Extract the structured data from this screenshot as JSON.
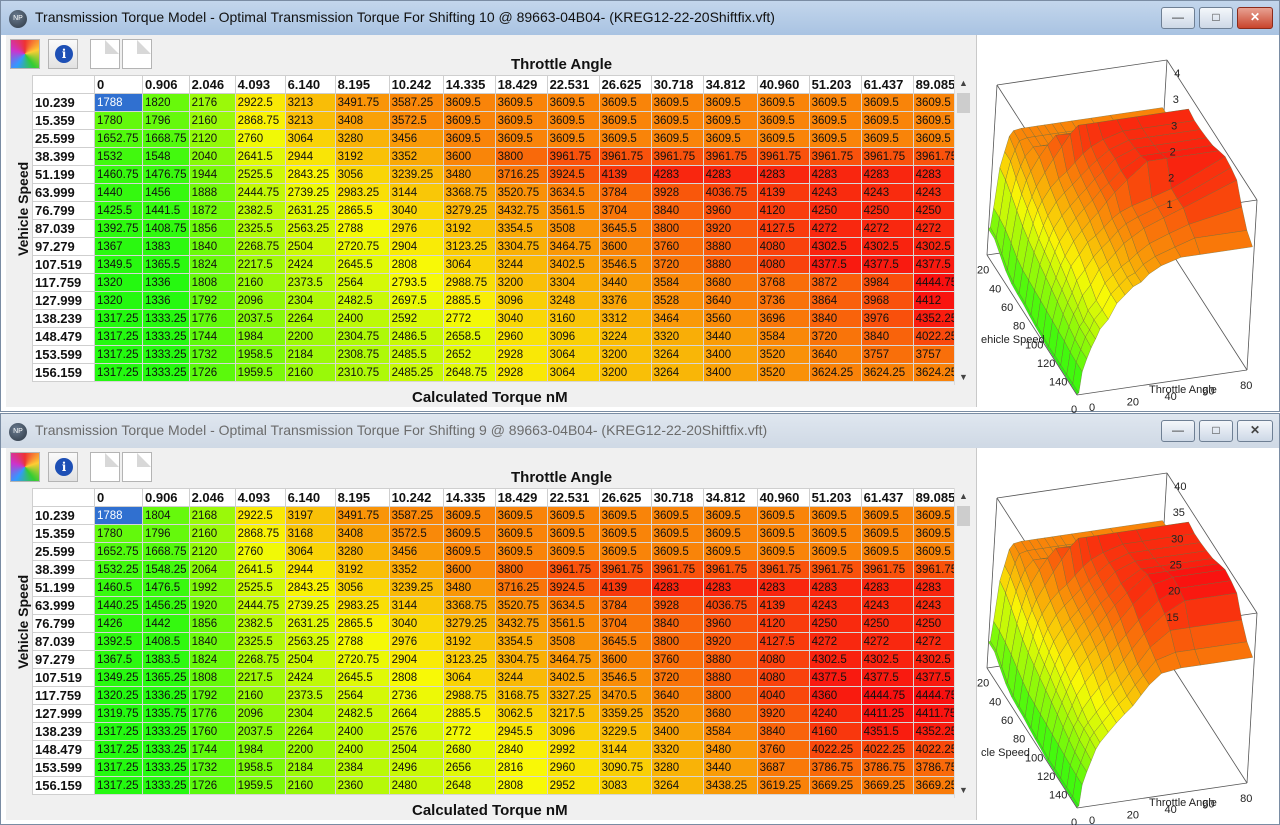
{
  "windows": [
    {
      "title": "Transmission Torque Model - Optimal Transmission Torque For Shifting 10 @ 89663-04B04- (KREG12-22-20Shiftfix.vft)",
      "active": true,
      "x_axis_label": "Throttle Angle",
      "y_axis_label": "Vehicle Speed",
      "value_label": "Calculated Torque nM",
      "columns": [
        "0",
        "0.906",
        "2.046",
        "4.093",
        "6.140",
        "8.195",
        "10.242",
        "14.335",
        "18.429",
        "22.531",
        "26.625",
        "30.718",
        "34.812",
        "40.960",
        "51.203",
        "61.437",
        "89.085"
      ],
      "rows": [
        {
          "speed": "10.239",
          "values": [
            "1788",
            "1820",
            "2176",
            "2922.5",
            "3213",
            "3491.75",
            "3587.25",
            "3609.5",
            "3609.5",
            "3609.5",
            "3609.5",
            "3609.5",
            "3609.5",
            "3609.5",
            "3609.5",
            "3609.5",
            "3609.5"
          ]
        },
        {
          "speed": "15.359",
          "values": [
            "1780",
            "1796",
            "2160",
            "2868.75",
            "3213",
            "3408",
            "3572.5",
            "3609.5",
            "3609.5",
            "3609.5",
            "3609.5",
            "3609.5",
            "3609.5",
            "3609.5",
            "3609.5",
            "3609.5",
            "3609.5"
          ]
        },
        {
          "speed": "25.599",
          "values": [
            "1652.75",
            "1668.75",
            "2120",
            "2760",
            "3064",
            "3280",
            "3456",
            "3609.5",
            "3609.5",
            "3609.5",
            "3609.5",
            "3609.5",
            "3609.5",
            "3609.5",
            "3609.5",
            "3609.5",
            "3609.5"
          ]
        },
        {
          "speed": "38.399",
          "values": [
            "1532",
            "1548",
            "2040",
            "2641.5",
            "2944",
            "3192",
            "3352",
            "3600",
            "3800",
            "3961.75",
            "3961.75",
            "3961.75",
            "3961.75",
            "3961.75",
            "3961.75",
            "3961.75",
            "3961.75"
          ]
        },
        {
          "speed": "51.199",
          "values": [
            "1460.75",
            "1476.75",
            "1944",
            "2525.5",
            "2843.25",
            "3056",
            "3239.25",
            "3480",
            "3716.25",
            "3924.5",
            "4139",
            "4283",
            "4283",
            "4283",
            "4283",
            "4283",
            "4283"
          ]
        },
        {
          "speed": "63.999",
          "values": [
            "1440",
            "1456",
            "1888",
            "2444.75",
            "2739.25",
            "2983.25",
            "3144",
            "3368.75",
            "3520.75",
            "3634.5",
            "3784",
            "3928",
            "4036.75",
            "4139",
            "4243",
            "4243",
            "4243"
          ]
        },
        {
          "speed": "76.799",
          "values": [
            "1425.5",
            "1441.5",
            "1872",
            "2382.5",
            "2631.25",
            "2865.5",
            "3040",
            "3279.25",
            "3432.75",
            "3561.5",
            "3704",
            "3840",
            "3960",
            "4120",
            "4250",
            "4250",
            "4250"
          ]
        },
        {
          "speed": "87.039",
          "values": [
            "1392.75",
            "1408.75",
            "1856",
            "2325.5",
            "2563.25",
            "2788",
            "2976",
            "3192",
            "3354.5",
            "3508",
            "3645.5",
            "3800",
            "3920",
            "4127.5",
            "4272",
            "4272",
            "4272"
          ]
        },
        {
          "speed": "97.279",
          "values": [
            "1367",
            "1383",
            "1840",
            "2268.75",
            "2504",
            "2720.75",
            "2904",
            "3123.25",
            "3304.75",
            "3464.75",
            "3600",
            "3760",
            "3880",
            "4080",
            "4302.5",
            "4302.5",
            "4302.5"
          ]
        },
        {
          "speed": "107.519",
          "values": [
            "1349.5",
            "1365.5",
            "1824",
            "2217.5",
            "2424",
            "2645.5",
            "2808",
            "3064",
            "3244",
            "3402.5",
            "3546.5",
            "3720",
            "3880",
            "4080",
            "4377.5",
            "4377.5",
            "4377.5"
          ]
        },
        {
          "speed": "117.759",
          "values": [
            "1320",
            "1336",
            "1808",
            "2160",
            "2373.5",
            "2564",
            "2793.5",
            "2988.75",
            "3200",
            "3304",
            "3440",
            "3584",
            "3680",
            "3768",
            "3872",
            "3984",
            "4444.75"
          ]
        },
        {
          "speed": "127.999",
          "values": [
            "1320",
            "1336",
            "1792",
            "2096",
            "2304",
            "2482.5",
            "2697.5",
            "2885.5",
            "3096",
            "3248",
            "3376",
            "3528",
            "3640",
            "3736",
            "3864",
            "3968",
            "4412"
          ]
        },
        {
          "speed": "138.239",
          "values": [
            "1317.25",
            "1333.25",
            "1776",
            "2037.5",
            "2264",
            "2400",
            "2592",
            "2772",
            "3040",
            "3160",
            "3312",
            "3464",
            "3560",
            "3696",
            "3840",
            "3976",
            "4352.25"
          ]
        },
        {
          "speed": "148.479",
          "values": [
            "1317.25",
            "1333.25",
            "1744",
            "1984",
            "2200",
            "2304.75",
            "2486.5",
            "2658.5",
            "2960",
            "3096",
            "3224",
            "3320",
            "3440",
            "3584",
            "3720",
            "3840",
            "4022.25"
          ]
        },
        {
          "speed": "153.599",
          "values": [
            "1317.25",
            "1333.25",
            "1732",
            "1958.5",
            "2184",
            "2308.75",
            "2485.5",
            "2652",
            "2928",
            "3064",
            "3200",
            "3264",
            "3400",
            "3520",
            "3640",
            "3757",
            "3757"
          ]
        },
        {
          "speed": "156.159",
          "values": [
            "1317.25",
            "1333.25",
            "1726",
            "1959.5",
            "2160",
            "2310.75",
            "2485.25",
            "2648.75",
            "2928",
            "3064",
            "3200",
            "3264",
            "3400",
            "3520",
            "3624.25",
            "3624.25",
            "3624.25"
          ]
        }
      ],
      "plot": {
        "z_ticks": [
          "4",
          "3",
          "3",
          "2",
          "2",
          "1"
        ],
        "y_ticks": [
          "20",
          "40",
          "60",
          "80",
          "100",
          "120",
          "140",
          "0"
        ],
        "y_label": "ehicle Speed",
        "x_ticks": [
          "0",
          "20",
          "40",
          "60",
          "80"
        ],
        "x_label": "Throttle Angle"
      }
    },
    {
      "title": "Transmission Torque Model - Optimal Transmission Torque For Shifting 9 @ 89663-04B04- (KREG12-22-20Shiftfix.vft)",
      "active": false,
      "x_axis_label": "Throttle Angle",
      "y_axis_label": "Vehicle Speed",
      "value_label": "Calculated Torque nM",
      "columns": [
        "0",
        "0.906",
        "2.046",
        "4.093",
        "6.140",
        "8.195",
        "10.242",
        "14.335",
        "18.429",
        "22.531",
        "26.625",
        "30.718",
        "34.812",
        "40.960",
        "51.203",
        "61.437",
        "89.085"
      ],
      "rows": [
        {
          "speed": "10.239",
          "values": [
            "1788",
            "1804",
            "2168",
            "2922.5",
            "3197",
            "3491.75",
            "3587.25",
            "3609.5",
            "3609.5",
            "3609.5",
            "3609.5",
            "3609.5",
            "3609.5",
            "3609.5",
            "3609.5",
            "3609.5",
            "3609.5"
          ]
        },
        {
          "speed": "15.359",
          "values": [
            "1780",
            "1796",
            "2160",
            "2868.75",
            "3168",
            "3408",
            "3572.5",
            "3609.5",
            "3609.5",
            "3609.5",
            "3609.5",
            "3609.5",
            "3609.5",
            "3609.5",
            "3609.5",
            "3609.5",
            "3609.5"
          ]
        },
        {
          "speed": "25.599",
          "values": [
            "1652.75",
            "1668.75",
            "2120",
            "2760",
            "3064",
            "3280",
            "3456",
            "3609.5",
            "3609.5",
            "3609.5",
            "3609.5",
            "3609.5",
            "3609.5",
            "3609.5",
            "3609.5",
            "3609.5",
            "3609.5"
          ]
        },
        {
          "speed": "38.399",
          "values": [
            "1532.25",
            "1548.25",
            "2064",
            "2641.5",
            "2944",
            "3192",
            "3352",
            "3600",
            "3800",
            "3961.75",
            "3961.75",
            "3961.75",
            "3961.75",
            "3961.75",
            "3961.75",
            "3961.75",
            "3961.75"
          ]
        },
        {
          "speed": "51.199",
          "values": [
            "1460.5",
            "1476.5",
            "1992",
            "2525.5",
            "2843.25",
            "3056",
            "3239.25",
            "3480",
            "3716.25",
            "3924.5",
            "4139",
            "4283",
            "4283",
            "4283",
            "4283",
            "4283",
            "4283"
          ]
        },
        {
          "speed": "63.999",
          "values": [
            "1440.25",
            "1456.25",
            "1920",
            "2444.75",
            "2739.25",
            "2983.25",
            "3144",
            "3368.75",
            "3520.75",
            "3634.5",
            "3784",
            "3928",
            "4036.75",
            "4139",
            "4243",
            "4243",
            "4243"
          ]
        },
        {
          "speed": "76.799",
          "values": [
            "1426",
            "1442",
            "1856",
            "2382.5",
            "2631.25",
            "2865.5",
            "3040",
            "3279.25",
            "3432.75",
            "3561.5",
            "3704",
            "3840",
            "3960",
            "4120",
            "4250",
            "4250",
            "4250"
          ]
        },
        {
          "speed": "87.039",
          "values": [
            "1392.5",
            "1408.5",
            "1840",
            "2325.5",
            "2563.25",
            "2788",
            "2976",
            "3192",
            "3354.5",
            "3508",
            "3645.5",
            "3800",
            "3920",
            "4127.5",
            "4272",
            "4272",
            "4272"
          ]
        },
        {
          "speed": "97.279",
          "values": [
            "1367.5",
            "1383.5",
            "1824",
            "2268.75",
            "2504",
            "2720.75",
            "2904",
            "3123.25",
            "3304.75",
            "3464.75",
            "3600",
            "3760",
            "3880",
            "4080",
            "4302.5",
            "4302.5",
            "4302.5"
          ]
        },
        {
          "speed": "107.519",
          "values": [
            "1349.25",
            "1365.25",
            "1808",
            "2217.5",
            "2424",
            "2645.5",
            "2808",
            "3064",
            "3244",
            "3402.5",
            "3546.5",
            "3720",
            "3880",
            "4080",
            "4377.5",
            "4377.5",
            "4377.5"
          ]
        },
        {
          "speed": "117.759",
          "values": [
            "1320.25",
            "1336.25",
            "1792",
            "2160",
            "2373.5",
            "2564",
            "2736",
            "2988.75",
            "3168.75",
            "3327.25",
            "3470.5",
            "3640",
            "3800",
            "4040",
            "4360",
            "4444.75",
            "4444.75"
          ]
        },
        {
          "speed": "127.999",
          "values": [
            "1319.75",
            "1335.75",
            "1776",
            "2096",
            "2304",
            "2482.5",
            "2664",
            "2885.5",
            "3062.5",
            "3217.5",
            "3359.25",
            "3520",
            "3680",
            "3920",
            "4240",
            "4411.25",
            "4411.75"
          ]
        },
        {
          "speed": "138.239",
          "values": [
            "1317.25",
            "1333.25",
            "1760",
            "2037.5",
            "2264",
            "2400",
            "2576",
            "2772",
            "2945.5",
            "3096",
            "3229.5",
            "3400",
            "3584",
            "3840",
            "4160",
            "4351.5",
            "4352.25"
          ]
        },
        {
          "speed": "148.479",
          "values": [
            "1317.25",
            "1333.25",
            "1744",
            "1984",
            "2200",
            "2400",
            "2504",
            "2680",
            "2840",
            "2992",
            "3144",
            "3320",
            "3480",
            "3760",
            "4022.25",
            "4022.25",
            "4022.25"
          ]
        },
        {
          "speed": "153.599",
          "values": [
            "1317.25",
            "1333.25",
            "1732",
            "1958.5",
            "2184",
            "2384",
            "2496",
            "2656",
            "2816",
            "2960",
            "3090.75",
            "3280",
            "3440",
            "3687",
            "3786.75",
            "3786.75",
            "3786.75"
          ]
        },
        {
          "speed": "156.159",
          "values": [
            "1317.25",
            "1333.25",
            "1726",
            "1959.5",
            "2160",
            "2360",
            "2480",
            "2648",
            "2808",
            "2952",
            "3083",
            "3264",
            "3438.25",
            "3619.25",
            "3669.25",
            "3669.25",
            "3669.25"
          ]
        }
      ],
      "plot": {
        "z_ticks": [
          "40",
          "35",
          "30",
          "25",
          "20",
          "15"
        ],
        "y_ticks": [
          "20",
          "40",
          "60",
          "80",
          "100",
          "120",
          "140",
          "0"
        ],
        "y_label": "cle Speed",
        "x_ticks": [
          "0",
          "20",
          "40",
          "60",
          "80"
        ],
        "x_label": "Throttle Angle"
      }
    }
  ],
  "window_buttons": {
    "minimize": "—",
    "maximize": "□",
    "close": "✕"
  },
  "app_icon_text": "NP",
  "info_glyph": "i",
  "colors": {
    "selected_cell": "#3070d0",
    "low": "#33cc11",
    "mid": "#ffff00",
    "high": "#ff1a00",
    "title_active": "#a9c3e2",
    "title_inactive": "#cfd9e5"
  },
  "toolbar_icons": [
    "palette-icon",
    "info-icon",
    "document-icon",
    "document-icon"
  ]
}
